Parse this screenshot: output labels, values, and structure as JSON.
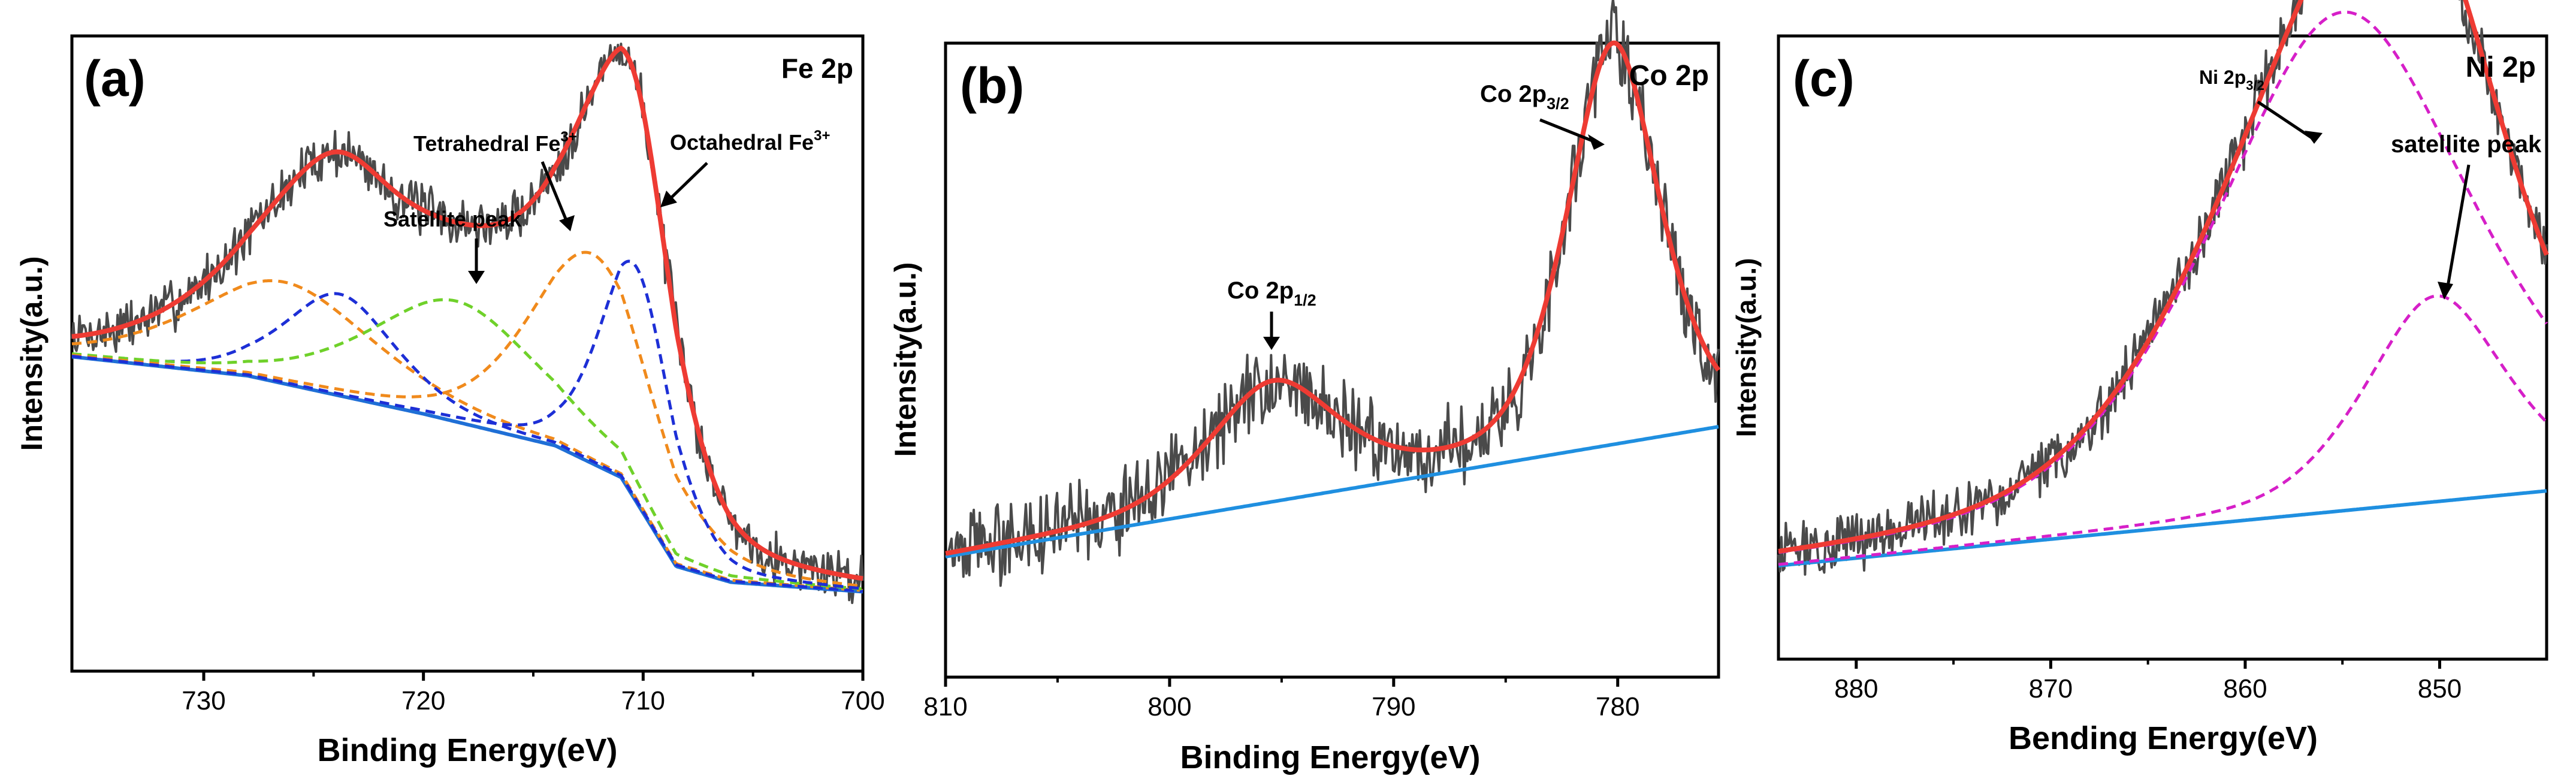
{
  "figure": {
    "panels": [
      {
        "id": "a",
        "label": "(a)",
        "element": "Fe 2p",
        "xlabel": "Binding Energy(eV)",
        "ylabel": "Intensity(a.u.)",
        "xticks": [
          "730",
          "720",
          "710",
          "700"
        ],
        "annotations": [
          {
            "text": "Satellite peak",
            "sup": "",
            "sub": ""
          },
          {
            "text": "Tetrahedral Fe",
            "sup": "3+",
            "sub": ""
          },
          {
            "text": "Octahedral Fe",
            "sup": "3+",
            "sub": ""
          }
        ]
      },
      {
        "id": "b",
        "label": "(b)",
        "element": "Co 2p",
        "xlabel": "Binding Energy(eV)",
        "ylabel": "Intensity(a.u.)",
        "xticks": [
          "810",
          "800",
          "790",
          "780"
        ],
        "annotations": [
          {
            "text": "Co 2p",
            "sup": "",
            "sub": "1/2"
          },
          {
            "text": "Co 2p",
            "sup": "",
            "sub": "3/2"
          }
        ]
      },
      {
        "id": "c",
        "label": "(c)",
        "element": "Ni 2p",
        "xlabel": "Bending Energy(eV)",
        "ylabel": "Intensity(a.u.)",
        "xticks": [
          "880",
          "870",
          "860",
          "850"
        ],
        "annotations": [
          {
            "text": "Ni 2p",
            "sup": "",
            "sub": "3/2"
          },
          {
            "text": "satellite peak",
            "sup": "",
            "sub": ""
          }
        ]
      }
    ]
  },
  "chart_data": [
    {
      "type": "line",
      "title": "Fe 2p",
      "panel_label": "(a)",
      "xlabel": "Binding Energy(eV)",
      "ylabel": "Intensity(a.u.)",
      "xlim": [
        736,
        700
      ],
      "ylim": [
        0,
        1.0
      ],
      "xticks": [
        730,
        720,
        710,
        700
      ],
      "colors": {
        "raw": "#4a4a4a",
        "fit": "#ee3b33",
        "background": "#1f6fd6",
        "fe_a": "#f08a1c",
        "fe_b": "#1d2fd6",
        "fe_c": "#6fd12a"
      },
      "background": {
        "x": [
          736,
          728,
          720,
          714,
          711,
          708.5,
          706,
          700
        ],
        "y": [
          0.495,
          0.465,
          0.405,
          0.355,
          0.305,
          0.165,
          0.14,
          0.125
        ]
      },
      "peaks": [
        {
          "name": "Fe 2p1/2 (orange)",
          "center": 726.3,
          "height": 0.16,
          "width": 5.2,
          "style": "dashed",
          "color": "#f08a1c"
        },
        {
          "name": "Fe 2p1/2 (blue)",
          "center": 723.8,
          "height": 0.16,
          "width": 3.2,
          "style": "dashed",
          "color": "#1d2fd6"
        },
        {
          "name": "Satellite peak",
          "center": 718.5,
          "height": 0.19,
          "width": 5.0,
          "style": "dashed",
          "color": "#6fd12a"
        },
        {
          "name": "Tetrahedral Fe3+",
          "center": 712.3,
          "height": 0.33,
          "width": 3.6,
          "style": "dashed",
          "color": "#f08a1c"
        },
        {
          "name": "Octahedral Fe3+",
          "center": 710.3,
          "height": 0.37,
          "width": 2.1,
          "style": "dashed",
          "color": "#1d2fd6"
        }
      ],
      "noise_amplitude": 0.032
    },
    {
      "type": "line",
      "title": "Co 2p",
      "panel_label": "(b)",
      "xlabel": "Binding Energy(eV)",
      "ylabel": "Intensity(a.u.)",
      "xlim": [
        810,
        775.5
      ],
      "ylim": [
        0,
        1.0
      ],
      "xticks": [
        810,
        800,
        790,
        780
      ],
      "colors": {
        "raw": "#4a4a4a",
        "fit": "#ee3b33",
        "background": "#1f8fe0"
      },
      "background": {
        "x": [
          810,
          775.5
        ],
        "y": [
          0.19,
          0.395
        ]
      },
      "peaks": [
        {
          "name": "Co 2p1/2",
          "center": 795.4,
          "height": 0.185,
          "width": 3.6,
          "style": "none",
          "color": "#ee3b33"
        },
        {
          "name": "Co 2p3/2",
          "center": 780.2,
          "height": 0.63,
          "width": 2.6,
          "style": "none",
          "color": "#ee3b33"
        }
      ],
      "noise_amplitude": 0.05
    },
    {
      "type": "line",
      "title": "Ni 2p",
      "panel_label": "(c)",
      "xlabel": "Bending Energy(eV)",
      "ylabel": "Intensity(a.u.)",
      "xlim": [
        884,
        844.5
      ],
      "ylim": [
        0,
        1.0
      ],
      "xticks": [
        880,
        870,
        860,
        850
      ],
      "colors": {
        "raw": "#4a4a4a",
        "fit": "#ee3b33",
        "background": "#1f8fe0",
        "ni": "#d61fc8"
      },
      "background": {
        "x": [
          884,
          844.5
        ],
        "y": [
          0.15,
          0.27
        ]
      },
      "peaks": [
        {
          "name": "Ni 2p3/2",
          "center": 855.0,
          "height": 0.8,
          "width": 8.5,
          "style": "dashed",
          "color": "#d61fc8"
        },
        {
          "name": "satellite peak",
          "center": 850.2,
          "height": 0.33,
          "width": 4.6,
          "style": "dashed",
          "color": "#d61fc8"
        }
      ],
      "noise_amplitude": 0.038
    }
  ]
}
